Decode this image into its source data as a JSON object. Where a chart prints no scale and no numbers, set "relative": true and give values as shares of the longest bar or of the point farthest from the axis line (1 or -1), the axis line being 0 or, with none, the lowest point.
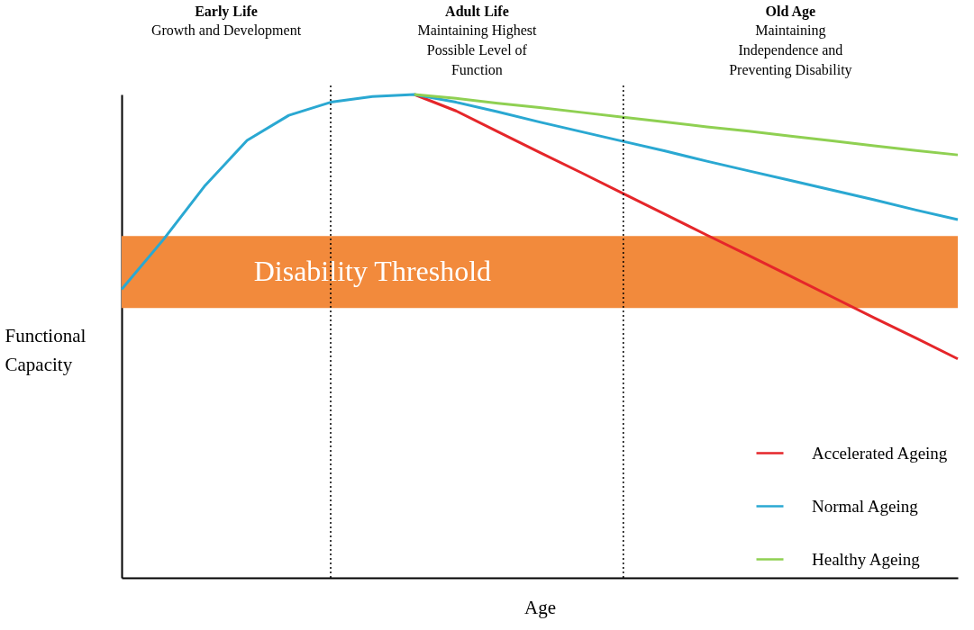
{
  "chart_data": {
    "type": "line",
    "relative": true,
    "xlabel": "Age",
    "ylabel": "Functional Capacity",
    "categories": [
      null,
      null,
      null,
      null,
      null,
      null,
      null,
      null,
      null,
      null,
      null,
      null,
      null,
      null,
      null,
      null,
      null,
      null,
      null,
      null,
      null
    ],
    "grid": false,
    "legend": "bottom right",
    "marker": "none",
    "line_style": "solid",
    "series": [
      {
        "name": "Accelerated Ageing",
        "color": "#e5262a",
        "values": [
          null,
          null,
          null,
          null,
          null,
          null,
          null,
          1,
          0.966,
          0.923,
          0.88,
          0.838,
          0.795,
          0.752,
          0.709,
          0.667,
          0.624,
          0.581,
          0.538,
          0.496,
          0.453
        ]
      },
      {
        "name": "Normal Ageing",
        "color": "#2aa8d2",
        "values": [
          0.597,
          0.7,
          0.812,
          0.905,
          0.957,
          0.984,
          0.996,
          1,
          0.984,
          0.964,
          0.943,
          0.923,
          0.903,
          0.883,
          0.862,
          0.842,
          0.822,
          0.802,
          0.782,
          0.761,
          0.741
        ]
      },
      {
        "name": "Healthy Ageing",
        "color": "#8fd052",
        "values": [
          null,
          null,
          null,
          null,
          null,
          null,
          null,
          1,
          0.992,
          0.982,
          0.973,
          0.963,
          0.953,
          0.943,
          0.933,
          0.924,
          0.914,
          0.904,
          0.894,
          0.884,
          0.875
        ]
      }
    ],
    "bands": [
      {
        "axis": "y",
        "from": 0.558,
        "to": 0.707,
        "label": "Disability Threshold",
        "color": "#f28a3c"
      }
    ],
    "annotations": [
      "Early Life\nGrowth and Development",
      "Adult Life\nMaintaining Highest\nPossible Level of\nFunction",
      "Old Age\nMaintaining\nIndependence and\nPreventing Disability"
    ]
  }
}
